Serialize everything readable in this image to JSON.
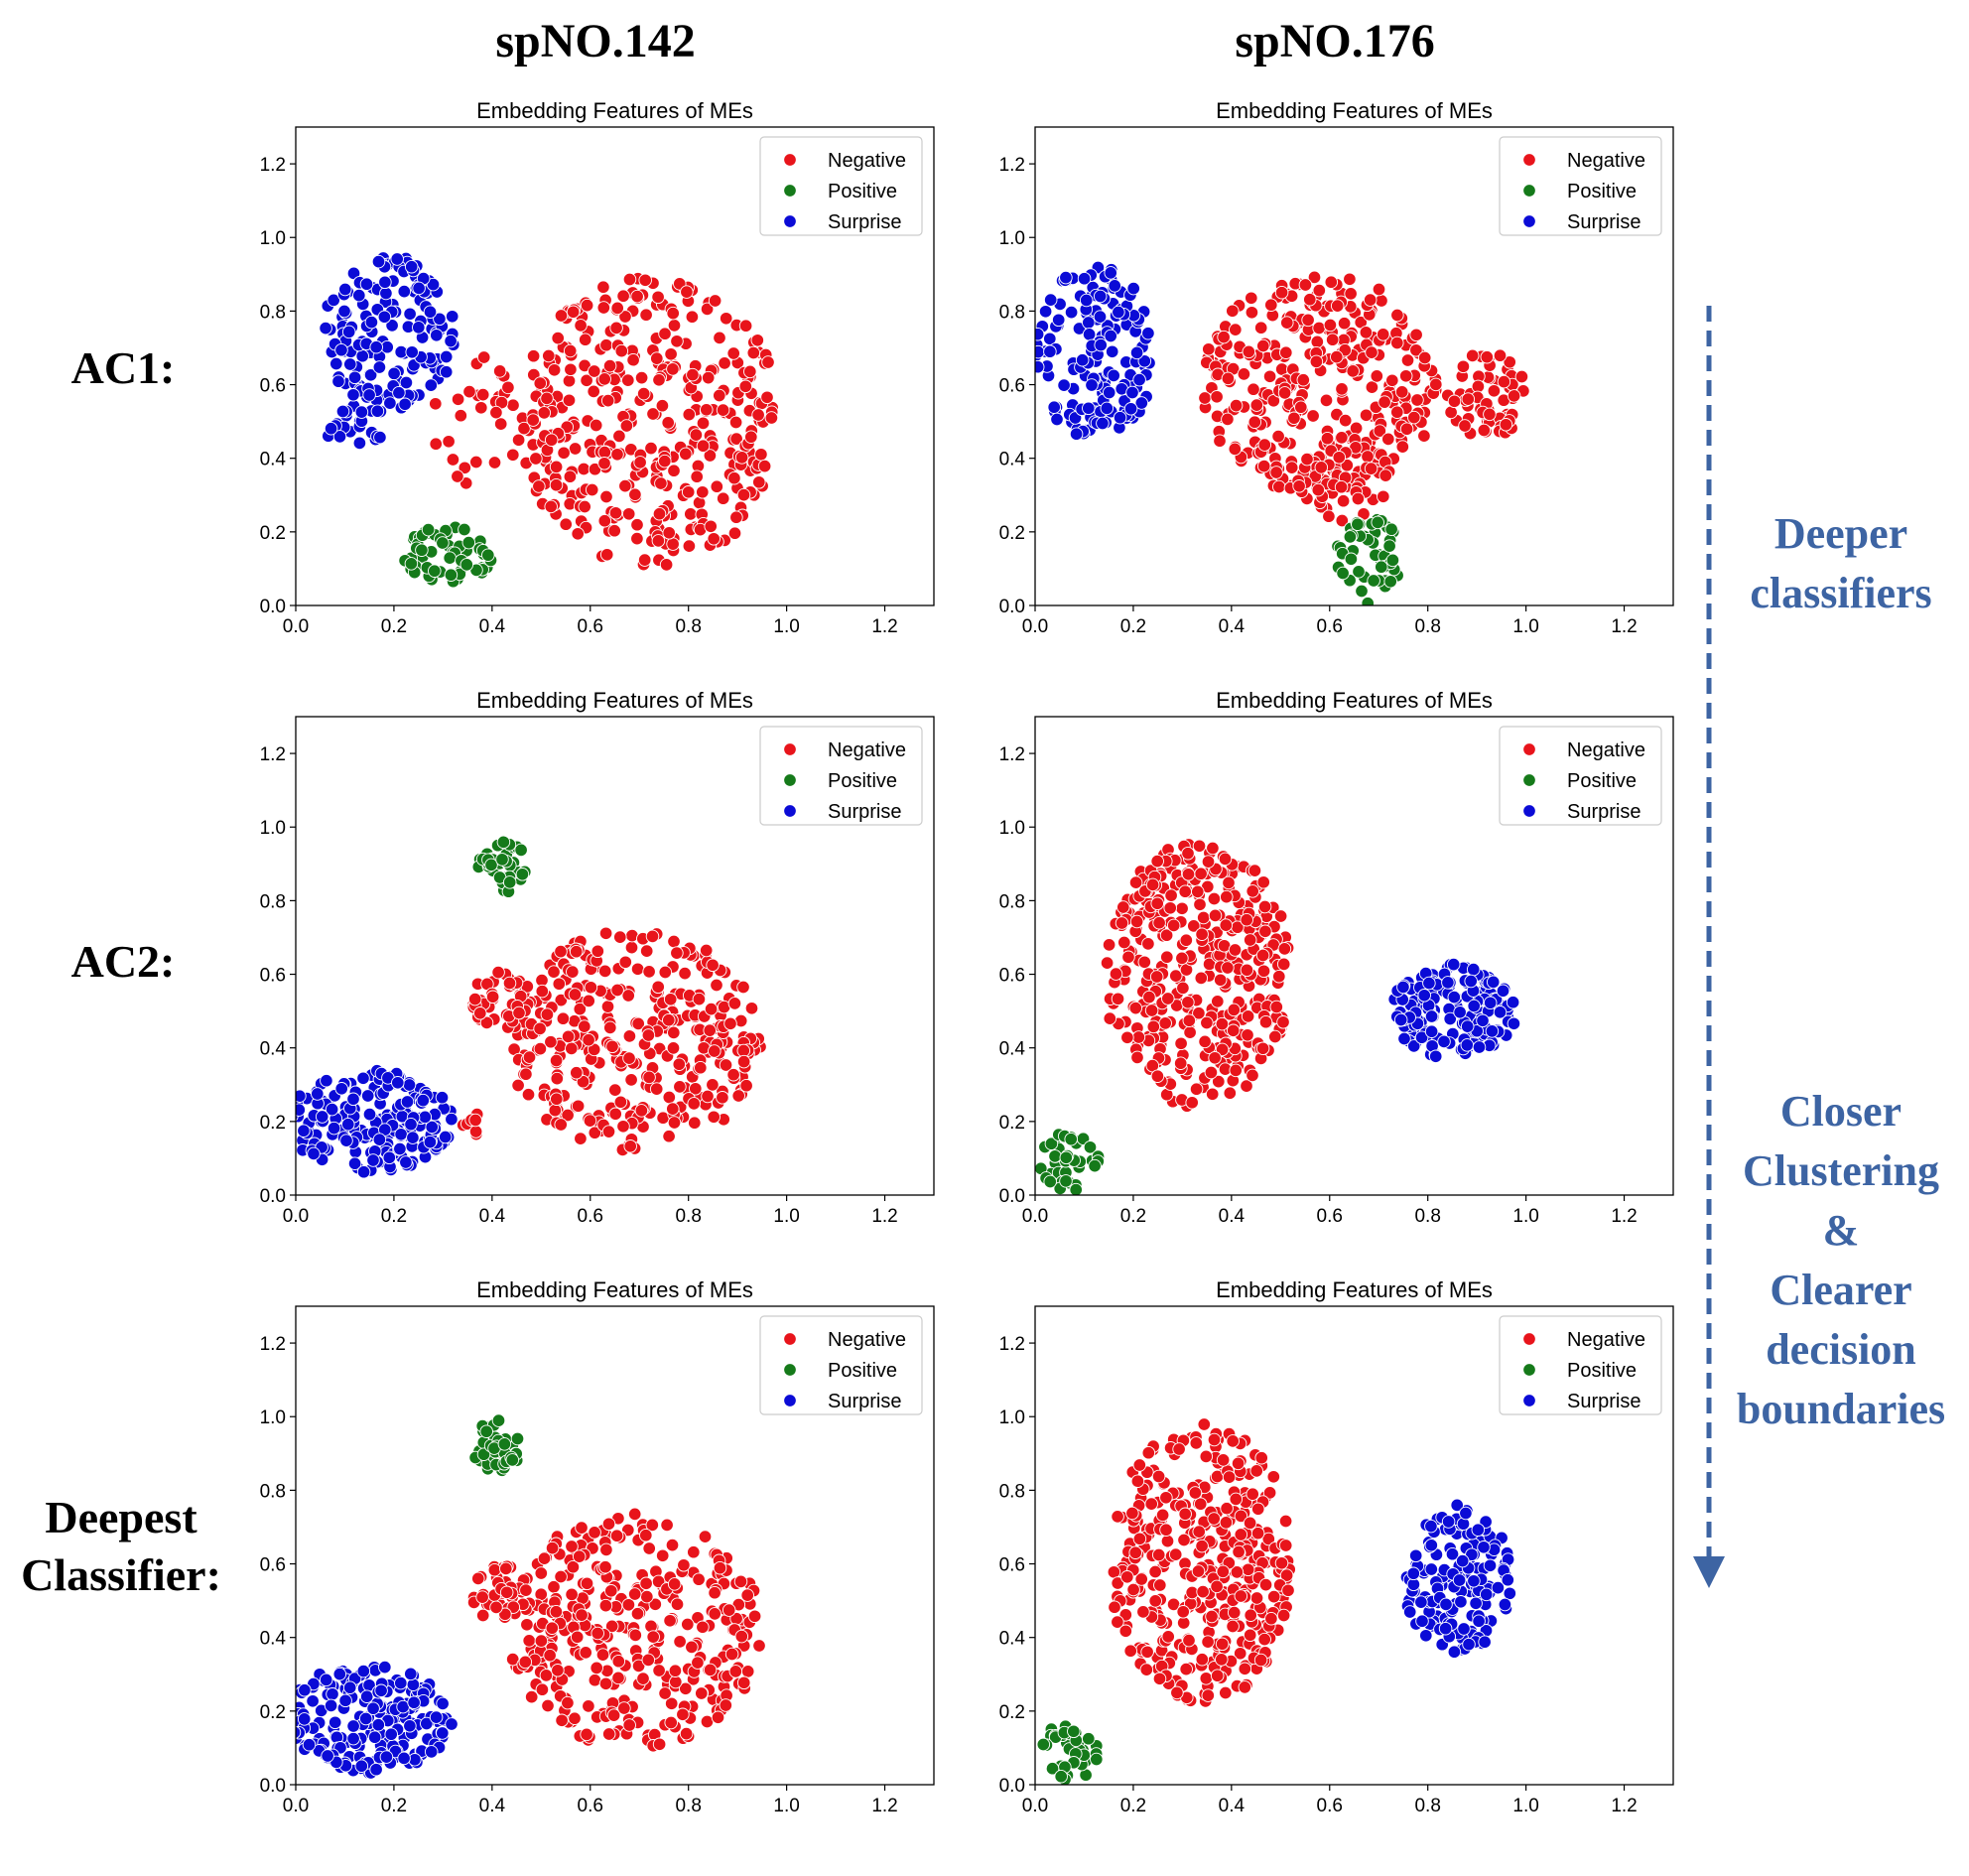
{
  "column_titles": [
    "spNO.142",
    "spNO.176"
  ],
  "row_labels": {
    "ac1": "AC1:",
    "ac2": "AC2:",
    "deepest_line1": "Deepest",
    "deepest_line2": "Classifier:"
  },
  "annotations": {
    "deeper_line1": "Deeper",
    "deeper_line2": "classifiers",
    "closer_line1": "Closer",
    "closer_line2": "Clustering",
    "closer_line3": "&",
    "closer_line4": "Clearer",
    "closer_line5": "decision",
    "closer_line6": "boundaries"
  },
  "colors": {
    "Negative": "#e8141b",
    "Positive": "#157a1a",
    "Surprise": "#0b0bd6",
    "arrow": "#3d64a3"
  },
  "chart_data": [
    {
      "id": "ac1-sp142",
      "type": "scatter",
      "title": "Embedding Features of MEs",
      "xlim": [
        0,
        1.3
      ],
      "ylim": [
        0,
        1.3
      ],
      "xticks": [
        "0.0",
        "0.2",
        "0.4",
        "0.6",
        "0.8",
        "1.0",
        "1.2"
      ],
      "yticks": [
        "0.0",
        "0.2",
        "0.4",
        "0.6",
        "0.8",
        "1.0",
        "1.2"
      ],
      "legend": [
        "Negative",
        "Positive",
        "Surprise"
      ],
      "legend_position": "top-right",
      "clusters": [
        {
          "label": "Surprise",
          "cx": 0.19,
          "cy": 0.74,
          "rx": 0.14,
          "ry": 0.21,
          "n": 150
        },
        {
          "label": "Surprise",
          "cx": 0.12,
          "cy": 0.5,
          "rx": 0.07,
          "ry": 0.08,
          "n": 25
        },
        {
          "label": "Negative",
          "cx": 0.72,
          "cy": 0.5,
          "rx": 0.27,
          "ry": 0.4,
          "n": 380
        },
        {
          "label": "Negative",
          "cx": 0.37,
          "cy": 0.5,
          "rx": 0.1,
          "ry": 0.18,
          "n": 30
        },
        {
          "label": "Positive",
          "cx": 0.31,
          "cy": 0.14,
          "rx": 0.09,
          "ry": 0.08,
          "n": 60
        }
      ]
    },
    {
      "id": "ac1-sp176",
      "type": "scatter",
      "title": "Embedding Features of MEs",
      "xlim": [
        0,
        1.3
      ],
      "ylim": [
        0,
        1.3
      ],
      "xticks": [
        "0.0",
        "0.2",
        "0.4",
        "0.6",
        "0.8",
        "1.0",
        "1.2"
      ],
      "yticks": [
        "0.0",
        "0.2",
        "0.4",
        "0.6",
        "0.8",
        "1.0",
        "1.2"
      ],
      "legend": [
        "Negative",
        "Positive",
        "Surprise"
      ],
      "legend_position": "top-right",
      "clusters": [
        {
          "label": "Surprise",
          "cx": 0.12,
          "cy": 0.68,
          "rx": 0.12,
          "ry": 0.25,
          "n": 160
        },
        {
          "label": "Negative",
          "cx": 0.58,
          "cy": 0.6,
          "rx": 0.24,
          "ry": 0.3,
          "n": 330
        },
        {
          "label": "Negative",
          "cx": 0.92,
          "cy": 0.57,
          "rx": 0.08,
          "ry": 0.12,
          "n": 60
        },
        {
          "label": "Negative",
          "cx": 0.62,
          "cy": 0.33,
          "rx": 0.1,
          "ry": 0.1,
          "n": 40
        },
        {
          "label": "Positive",
          "cx": 0.68,
          "cy": 0.12,
          "rx": 0.07,
          "ry": 0.12,
          "n": 50
        }
      ]
    },
    {
      "id": "ac2-sp142",
      "type": "scatter",
      "title": "Embedding Features of MEs",
      "xlim": [
        0,
        1.3
      ],
      "ylim": [
        0,
        1.3
      ],
      "xticks": [
        "0.0",
        "0.2",
        "0.4",
        "0.6",
        "0.8",
        "1.0",
        "1.2"
      ],
      "yticks": [
        "0.0",
        "0.2",
        "0.4",
        "0.6",
        "0.8",
        "1.0",
        "1.2"
      ],
      "legend": [
        "Negative",
        "Positive",
        "Surprise"
      ],
      "legend_position": "top-right",
      "clusters": [
        {
          "label": "Surprise",
          "cx": 0.15,
          "cy": 0.2,
          "rx": 0.17,
          "ry": 0.14,
          "n": 200
        },
        {
          "label": "Positive",
          "cx": 0.42,
          "cy": 0.9,
          "rx": 0.05,
          "ry": 0.08,
          "n": 40
        },
        {
          "label": "Negative",
          "cx": 0.69,
          "cy": 0.42,
          "rx": 0.26,
          "ry": 0.3,
          "n": 340
        },
        {
          "label": "Negative",
          "cx": 0.42,
          "cy": 0.53,
          "rx": 0.06,
          "ry": 0.08,
          "n": 40
        },
        {
          "label": "Negative",
          "cx": 0.36,
          "cy": 0.2,
          "rx": 0.03,
          "ry": 0.04,
          "n": 8
        }
      ]
    },
    {
      "id": "ac2-sp176",
      "type": "scatter",
      "title": "Embedding Features of MEs",
      "xlim": [
        0,
        1.3
      ],
      "ylim": [
        0,
        1.3
      ],
      "xticks": [
        "0.0",
        "0.2",
        "0.4",
        "0.6",
        "0.8",
        "1.0",
        "1.2"
      ],
      "yticks": [
        "0.0",
        "0.2",
        "0.4",
        "0.6",
        "0.8",
        "1.0",
        "1.2"
      ],
      "legend": [
        "Negative",
        "Positive",
        "Surprise"
      ],
      "legend_position": "top-right",
      "clusters": [
        {
          "label": "Negative",
          "cx": 0.33,
          "cy": 0.6,
          "rx": 0.19,
          "ry": 0.36,
          "n": 380
        },
        {
          "label": "Surprise",
          "cx": 0.85,
          "cy": 0.5,
          "rx": 0.13,
          "ry": 0.13,
          "n": 160
        },
        {
          "label": "Positive",
          "cx": 0.07,
          "cy": 0.09,
          "rx": 0.06,
          "ry": 0.08,
          "n": 40
        }
      ]
    },
    {
      "id": "deepest-sp142",
      "type": "scatter",
      "title": "Embedding Features of MEs",
      "xlim": [
        0,
        1.3
      ],
      "ylim": [
        0,
        1.3
      ],
      "xticks": [
        "0.0",
        "0.2",
        "0.4",
        "0.6",
        "0.8",
        "1.0",
        "1.2"
      ],
      "yticks": [
        "0.0",
        "0.2",
        "0.4",
        "0.6",
        "0.8",
        "1.0",
        "1.2"
      ],
      "legend": [
        "Negative",
        "Positive",
        "Surprise"
      ],
      "legend_position": "top-right",
      "clusters": [
        {
          "label": "Surprise",
          "cx": 0.15,
          "cy": 0.18,
          "rx": 0.17,
          "ry": 0.15,
          "n": 200
        },
        {
          "label": "Positive",
          "cx": 0.41,
          "cy": 0.92,
          "rx": 0.05,
          "ry": 0.07,
          "n": 40
        },
        {
          "label": "Negative",
          "cx": 0.69,
          "cy": 0.42,
          "rx": 0.26,
          "ry": 0.32,
          "n": 340
        },
        {
          "label": "Negative",
          "cx": 0.42,
          "cy": 0.52,
          "rx": 0.06,
          "ry": 0.08,
          "n": 40
        }
      ]
    },
    {
      "id": "deepest-sp176",
      "type": "scatter",
      "title": "Embedding Features of MEs",
      "xlim": [
        0,
        1.3
      ],
      "ylim": [
        0,
        1.3
      ],
      "xticks": [
        "0.0",
        "0.2",
        "0.4",
        "0.6",
        "0.8",
        "1.0",
        "1.2"
      ],
      "yticks": [
        "0.0",
        "0.2",
        "0.4",
        "0.6",
        "0.8",
        "1.0",
        "1.2"
      ],
      "legend": [
        "Negative",
        "Positive",
        "Surprise"
      ],
      "legend_position": "top-right",
      "clusters": [
        {
          "label": "Negative",
          "cx": 0.34,
          "cy": 0.6,
          "rx": 0.19,
          "ry": 0.38,
          "n": 380
        },
        {
          "label": "Surprise",
          "cx": 0.86,
          "cy": 0.56,
          "rx": 0.11,
          "ry": 0.2,
          "n": 160
        },
        {
          "label": "Positive",
          "cx": 0.07,
          "cy": 0.09,
          "rx": 0.06,
          "ry": 0.08,
          "n": 40
        }
      ]
    }
  ]
}
